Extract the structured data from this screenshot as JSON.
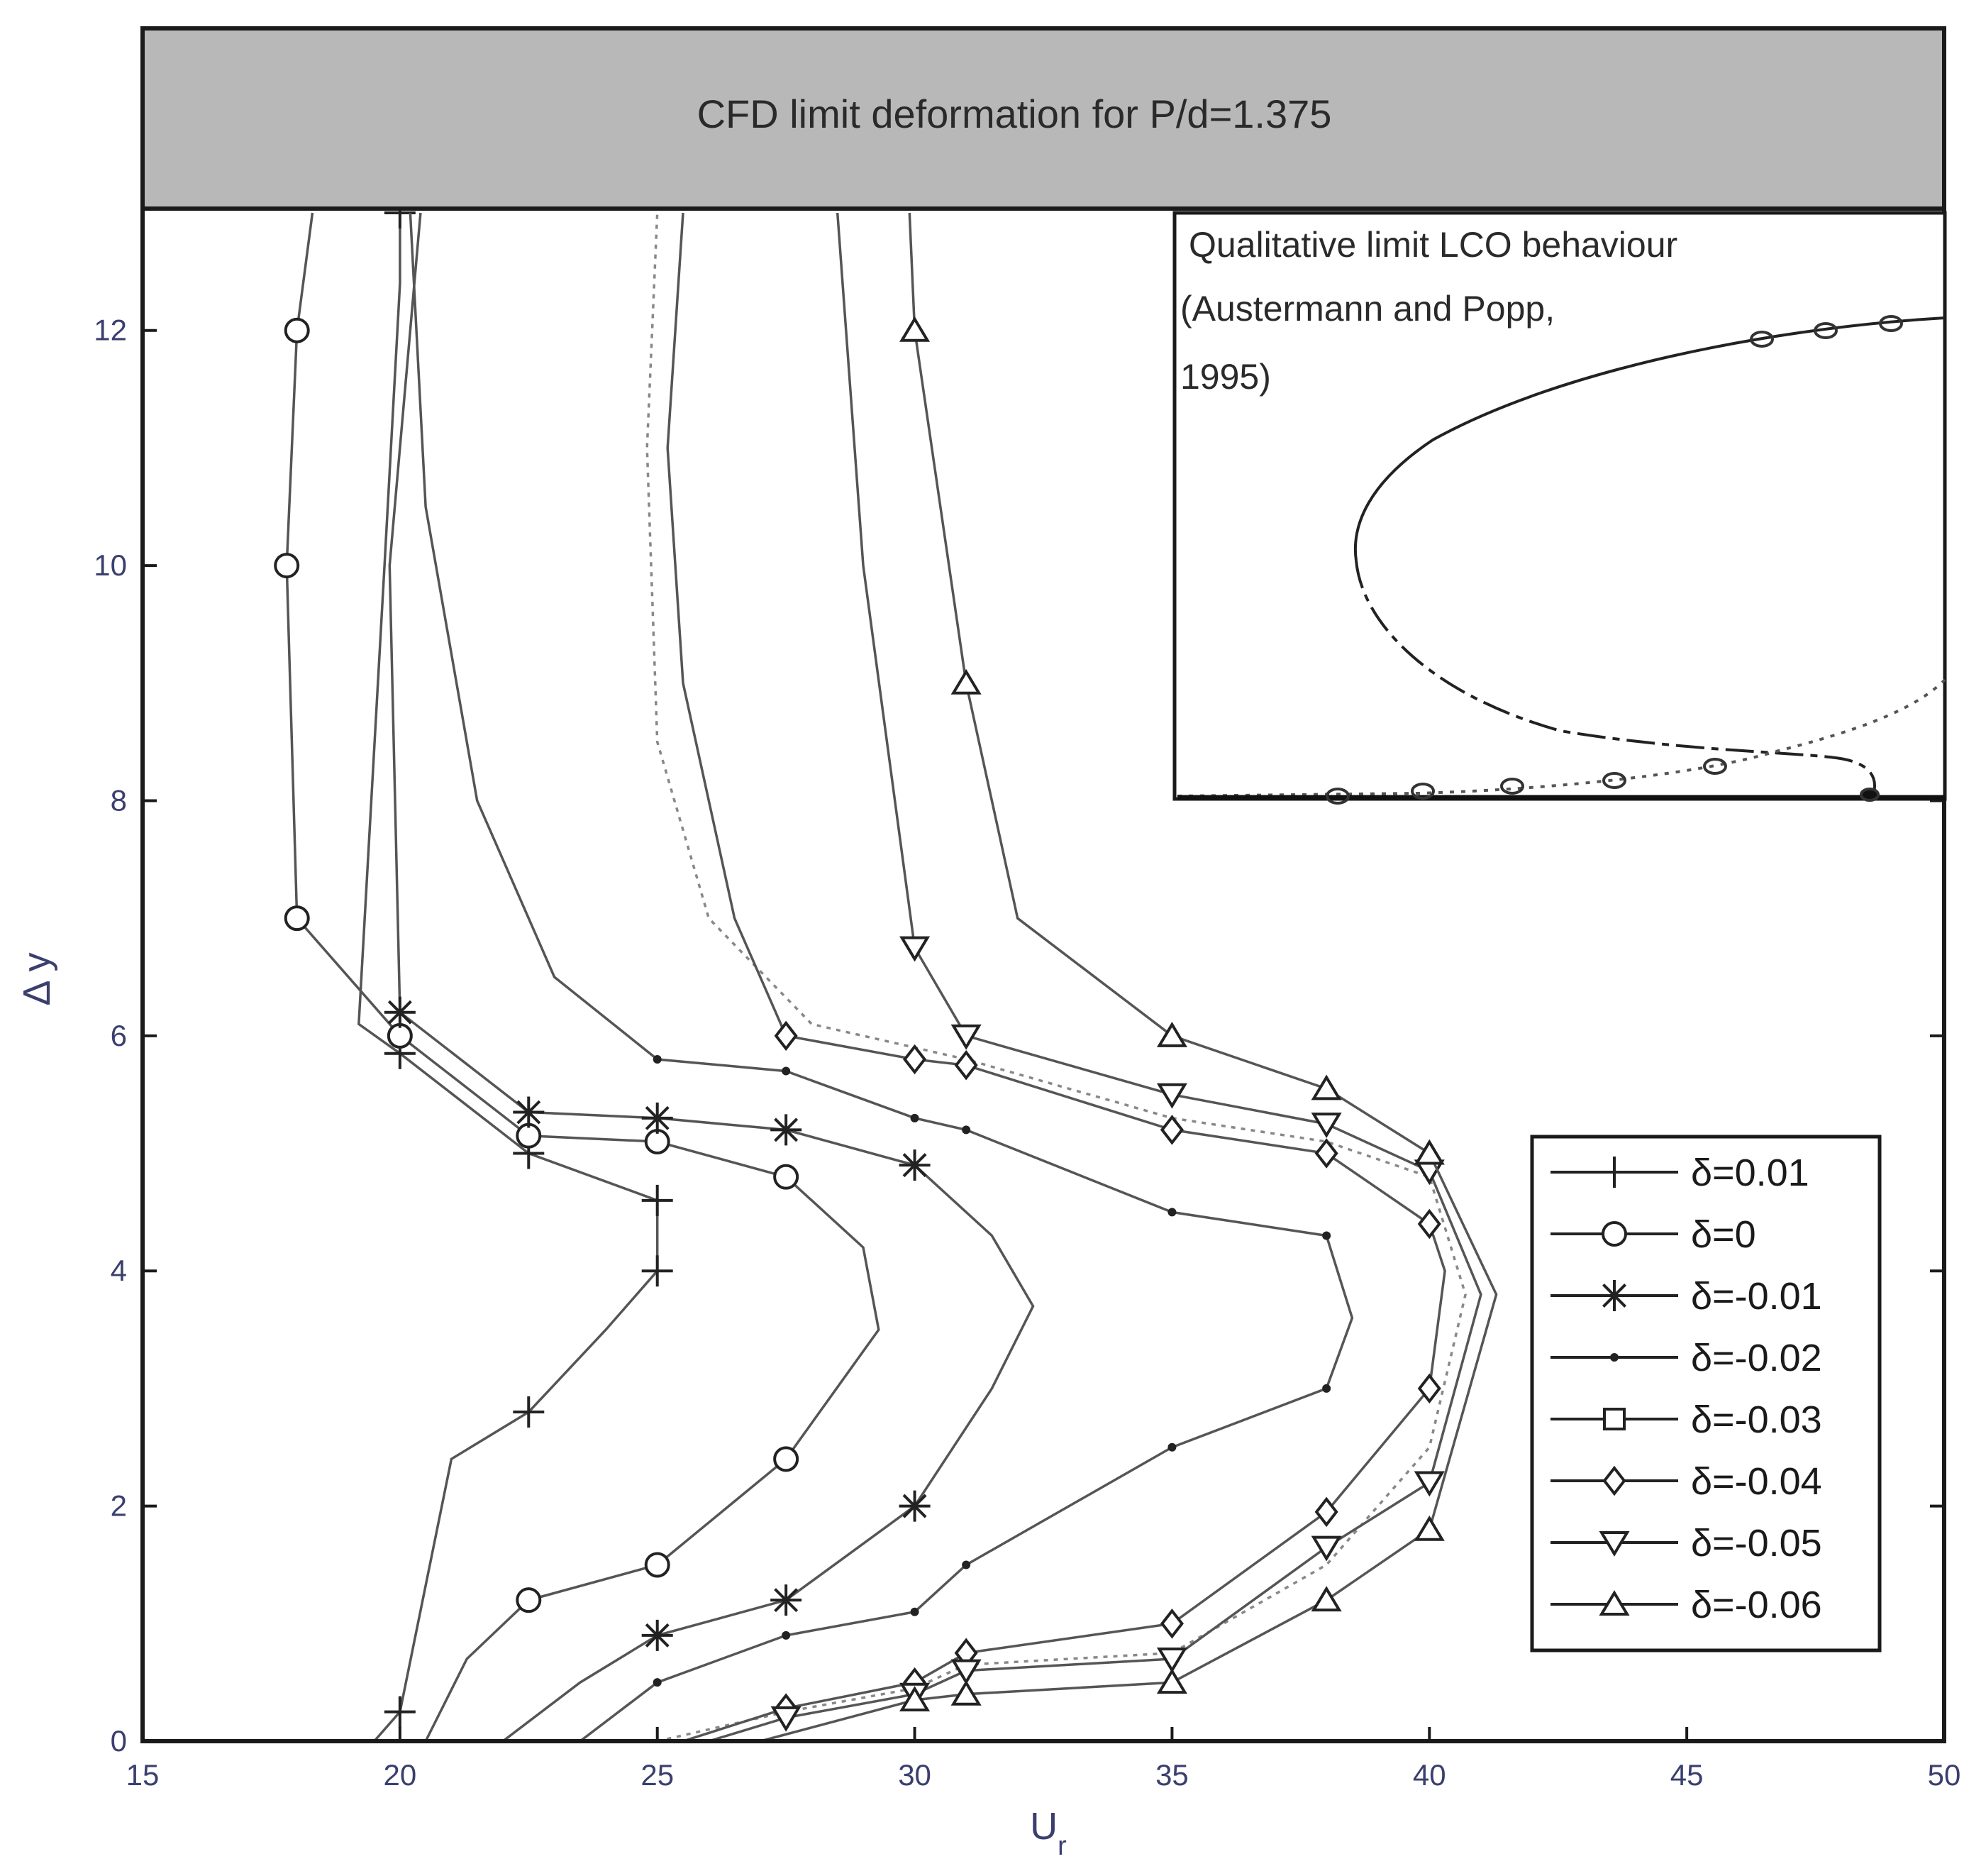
{
  "chart_data": {
    "type": "line",
    "title": "CFD limit deformation for P/d=1.375",
    "xlabel": "U",
    "xlabel_subscript": "r",
    "ylabel": "Δ y",
    "xlim": [
      15,
      50
    ],
    "ylim": [
      0,
      13
    ],
    "x_ticks": [
      15,
      20,
      25,
      30,
      35,
      40,
      45,
      50
    ],
    "y_ticks": [
      0,
      2,
      4,
      6,
      8,
      10,
      12
    ],
    "grid": false,
    "legend_position": "lower-right",
    "inset": {
      "lines": [
        "Qualitative limit LCO behaviour",
        "(Austermann and Popp,",
        "1995)"
      ]
    },
    "series": [
      {
        "name": "δ=0.01",
        "marker": "plus",
        "points": [
          [
            19.5,
            0
          ],
          [
            20,
            0.25
          ],
          [
            21,
            2.4
          ],
          [
            22.5,
            2.8
          ],
          [
            24,
            3.5
          ],
          [
            25,
            4
          ],
          [
            25,
            4.6
          ],
          [
            22.5,
            5
          ],
          [
            20,
            5.85
          ],
          [
            19.2,
            6.1
          ],
          [
            19.7,
            10
          ],
          [
            20,
            12.4
          ],
          [
            20,
            13
          ]
        ],
        "markers": [
          [
            20,
            0.25
          ],
          [
            22.5,
            2.8
          ],
          [
            25,
            4
          ],
          [
            25,
            4.6
          ],
          [
            22.5,
            5
          ],
          [
            20,
            5.85
          ],
          [
            20,
            13
          ]
        ]
      },
      {
        "name": "δ=0",
        "marker": "circle",
        "points": [
          [
            20.5,
            0
          ],
          [
            21.3,
            0.7
          ],
          [
            22.5,
            1.2
          ],
          [
            25,
            1.5
          ],
          [
            27.5,
            2.4
          ],
          [
            29.3,
            3.5
          ],
          [
            29,
            4.2
          ],
          [
            27.5,
            4.8
          ],
          [
            25,
            5.1
          ],
          [
            22.5,
            5.15
          ],
          [
            20,
            6
          ],
          [
            18,
            7
          ],
          [
            17.8,
            10
          ],
          [
            18,
            12
          ],
          [
            18.3,
            13
          ]
        ],
        "markers": [
          [
            22.5,
            1.2
          ],
          [
            25,
            1.5
          ],
          [
            27.5,
            2.4
          ],
          [
            27.5,
            4.8
          ],
          [
            25,
            5.1
          ],
          [
            22.5,
            5.15
          ],
          [
            20,
            6
          ],
          [
            18,
            7
          ],
          [
            17.8,
            10
          ],
          [
            18,
            12
          ]
        ]
      },
      {
        "name": "δ=-0.01",
        "marker": "star",
        "points": [
          [
            22,
            0
          ],
          [
            23.5,
            0.5
          ],
          [
            25,
            0.9
          ],
          [
            27.5,
            1.2
          ],
          [
            30,
            2
          ],
          [
            31.5,
            3
          ],
          [
            32.3,
            3.7
          ],
          [
            31.5,
            4.3
          ],
          [
            30,
            4.9
          ],
          [
            27.5,
            5.2
          ],
          [
            25,
            5.3
          ],
          [
            22.5,
            5.35
          ],
          [
            20,
            6.2
          ],
          [
            19.8,
            10
          ],
          [
            20.4,
            13
          ]
        ],
        "markers": [
          [
            25,
            0.9
          ],
          [
            27.5,
            1.2
          ],
          [
            30,
            2
          ],
          [
            30,
            4.9
          ],
          [
            27.5,
            5.2
          ],
          [
            25,
            5.3
          ],
          [
            22.5,
            5.35
          ],
          [
            20,
            6.2
          ]
        ]
      },
      {
        "name": "δ=-0.02",
        "marker": "dot",
        "points": [
          [
            23.5,
            0
          ],
          [
            25,
            0.5
          ],
          [
            27.5,
            0.9
          ],
          [
            30,
            1.1
          ],
          [
            31,
            1.5
          ],
          [
            35,
            2.5
          ],
          [
            38,
            3
          ],
          [
            38.5,
            3.6
          ],
          [
            38,
            4.3
          ],
          [
            35,
            4.5
          ],
          [
            31,
            5.2
          ],
          [
            30,
            5.3
          ],
          [
            27.5,
            5.7
          ],
          [
            25,
            5.8
          ],
          [
            23,
            6.5
          ],
          [
            21.5,
            8
          ],
          [
            20.5,
            10.5
          ],
          [
            20.2,
            13
          ]
        ],
        "markers": [
          [
            25,
            0.5
          ],
          [
            27.5,
            0.9
          ],
          [
            30,
            1.1
          ],
          [
            31,
            1.5
          ],
          [
            35,
            2.5
          ],
          [
            38,
            3
          ],
          [
            38,
            4.3
          ],
          [
            35,
            4.5
          ],
          [
            31,
            5.2
          ],
          [
            30,
            5.3
          ],
          [
            27.5,
            5.7
          ],
          [
            25,
            5.8
          ]
        ]
      },
      {
        "name": "δ=-0.03",
        "marker": "square",
        "points": [
          [
            25,
            0
          ],
          [
            27.5,
            0.25
          ],
          [
            30,
            0.45
          ],
          [
            31,
            0.65
          ],
          [
            35,
            0.75
          ],
          [
            38,
            1.5
          ],
          [
            40,
            2.5
          ],
          [
            40.7,
            3.8
          ],
          [
            40,
            4.8
          ],
          [
            38,
            5.1
          ],
          [
            35,
            5.3
          ],
          [
            31,
            5.8
          ],
          [
            28,
            6.1
          ],
          [
            26,
            7
          ],
          [
            25,
            8.5
          ],
          [
            24.8,
            11
          ],
          [
            25,
            13
          ]
        ],
        "markers": []
      },
      {
        "name": "δ=-0.04",
        "marker": "diamond",
        "points": [
          [
            25.5,
            0
          ],
          [
            27.5,
            0.28
          ],
          [
            30,
            0.5
          ],
          [
            31,
            0.75
          ],
          [
            35,
            1
          ],
          [
            38,
            1.95
          ],
          [
            40,
            3
          ],
          [
            40.3,
            4
          ],
          [
            40,
            4.4
          ],
          [
            38,
            5
          ],
          [
            35,
            5.2
          ],
          [
            31,
            5.75
          ],
          [
            30,
            5.8
          ],
          [
            27.5,
            6
          ],
          [
            26.5,
            7
          ],
          [
            25.5,
            9
          ],
          [
            25.2,
            11
          ],
          [
            25.5,
            13
          ]
        ],
        "markers": [
          [
            27.5,
            0.28
          ],
          [
            30,
            0.5
          ],
          [
            31,
            0.75
          ],
          [
            35,
            1
          ],
          [
            38,
            1.95
          ],
          [
            40,
            3
          ],
          [
            40,
            4.4
          ],
          [
            38,
            5
          ],
          [
            35,
            5.2
          ],
          [
            31,
            5.75
          ],
          [
            30,
            5.8
          ],
          [
            27.5,
            6
          ]
        ]
      },
      {
        "name": "δ=-0.05",
        "marker": "triangle-down",
        "points": [
          [
            26,
            0
          ],
          [
            27.5,
            0.2
          ],
          [
            30,
            0.4
          ],
          [
            31,
            0.6
          ],
          [
            35,
            0.7
          ],
          [
            38,
            1.65
          ],
          [
            40,
            2.2
          ],
          [
            41,
            3.8
          ],
          [
            40,
            4.85
          ],
          [
            38,
            5.25
          ],
          [
            35,
            5.5
          ],
          [
            31,
            6
          ],
          [
            30,
            6.75
          ],
          [
            29,
            10
          ],
          [
            28.5,
            13
          ]
        ],
        "markers": [
          [
            27.5,
            0.2
          ],
          [
            30,
            0.4
          ],
          [
            31,
            0.6
          ],
          [
            35,
            0.7
          ],
          [
            38,
            1.65
          ],
          [
            40,
            2.2
          ],
          [
            40,
            4.85
          ],
          [
            38,
            5.25
          ],
          [
            35,
            5.5
          ],
          [
            31,
            6
          ],
          [
            30,
            6.75
          ]
        ]
      },
      {
        "name": "δ=-0.06",
        "marker": "triangle-up",
        "points": [
          [
            27,
            0
          ],
          [
            30,
            0.35
          ],
          [
            31,
            0.4
          ],
          [
            35,
            0.5
          ],
          [
            38,
            1.2
          ],
          [
            40,
            1.8
          ],
          [
            41.3,
            3.8
          ],
          [
            40,
            5
          ],
          [
            38,
            5.55
          ],
          [
            35,
            6
          ],
          [
            32,
            7
          ],
          [
            31,
            9
          ],
          [
            30,
            12
          ],
          [
            29.9,
            13
          ]
        ],
        "markers": [
          [
            30,
            0.35
          ],
          [
            31,
            0.4
          ],
          [
            35,
            0.5
          ],
          [
            38,
            1.2
          ],
          [
            40,
            1.8
          ],
          [
            40,
            5
          ],
          [
            38,
            5.55
          ],
          [
            35,
            6
          ],
          [
            31,
            9
          ],
          [
            30,
            12
          ]
        ]
      }
    ]
  }
}
